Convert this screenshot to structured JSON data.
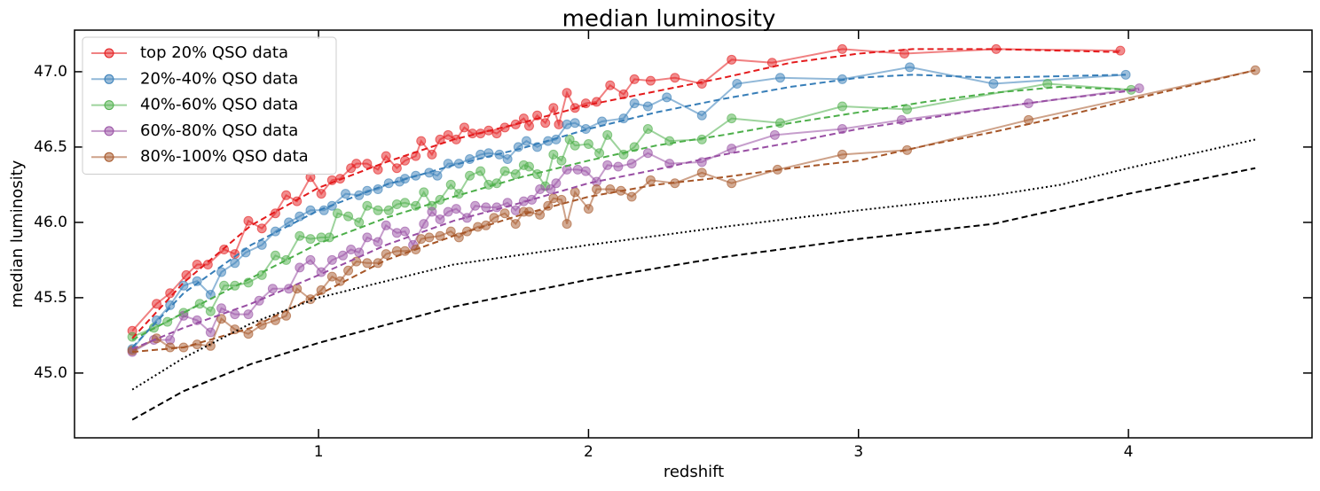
{
  "chart_data": {
    "type": "line",
    "title": "median luminosity",
    "xlabel": "redshift",
    "ylabel": "median luminosity",
    "xlim": [
      0.096,
      4.68
    ],
    "ylim": [
      44.57,
      47.276
    ],
    "xticks": [
      1,
      2,
      3,
      4
    ],
    "yticks": [
      {
        "value": 45,
        "label": "45.0"
      },
      45.5,
      {
        "value": 46,
        "label": "46.0"
      },
      46.5,
      {
        "value": 47,
        "label": "47.0"
      }
    ],
    "legend": "upper left",
    "series": [
      {
        "name": "top 20% QSO data",
        "color": "#e41a1c",
        "linestyle": "solid",
        "marker": true,
        "x": [
          0.31,
          0.4,
          0.45,
          0.51,
          0.55,
          0.59,
          0.65,
          0.69,
          0.74,
          0.79,
          0.84,
          0.88,
          0.92,
          0.97,
          1.01,
          1.05,
          1.08,
          1.12,
          1.14,
          1.18,
          1.22,
          1.25,
          1.29,
          1.32,
          1.36,
          1.38,
          1.42,
          1.45,
          1.48,
          1.51,
          1.54,
          1.57,
          1.6,
          1.63,
          1.66,
          1.69,
          1.73,
          1.76,
          1.78,
          1.81,
          1.84,
          1.87,
          1.89,
          1.92,
          1.95,
          1.99,
          2.03,
          2.08,
          2.13,
          2.17,
          2.23,
          2.32,
          2.42,
          2.53,
          2.68,
          2.94,
          3.17,
          3.51,
          3.97
        ],
        "values": [
          45.28,
          45.46,
          45.53,
          45.65,
          45.72,
          45.72,
          45.82,
          45.79,
          46.01,
          45.96,
          46.06,
          46.18,
          46.14,
          46.3,
          46.19,
          46.28,
          46.29,
          46.36,
          46.39,
          46.39,
          46.35,
          46.44,
          46.36,
          46.41,
          46.44,
          46.54,
          46.45,
          46.55,
          46.58,
          46.55,
          46.63,
          46.59,
          46.59,
          46.61,
          46.59,
          46.63,
          46.65,
          46.69,
          46.64,
          46.71,
          46.66,
          46.76,
          46.65,
          46.86,
          46.76,
          46.79,
          46.8,
          46.91,
          46.85,
          46.95,
          46.94,
          46.96,
          46.92,
          47.08,
          47.06,
          47.15,
          47.12,
          47.15,
          47.14
        ]
      },
      {
        "name": "20%-40% QSO data",
        "color": "#377eb8",
        "linestyle": "solid",
        "marker": true,
        "x": [
          0.31,
          0.4,
          0.45,
          0.5,
          0.55,
          0.6,
          0.64,
          0.69,
          0.73,
          0.79,
          0.84,
          0.89,
          0.93,
          0.97,
          1.02,
          1.05,
          1.1,
          1.15,
          1.18,
          1.22,
          1.26,
          1.3,
          1.32,
          1.36,
          1.41,
          1.44,
          1.48,
          1.52,
          1.56,
          1.6,
          1.63,
          1.67,
          1.7,
          1.74,
          1.77,
          1.81,
          1.85,
          1.88,
          1.92,
          1.95,
          1.99,
          2.05,
          2.13,
          2.17,
          2.22,
          2.29,
          2.42,
          2.55,
          2.71,
          2.94,
          3.19,
          3.5,
          3.99
        ],
        "values": [
          45.16,
          45.35,
          45.45,
          45.58,
          45.61,
          45.52,
          45.67,
          45.73,
          45.8,
          45.85,
          45.94,
          46.0,
          46.04,
          46.08,
          46.08,
          46.11,
          46.19,
          46.18,
          46.21,
          46.22,
          46.26,
          46.27,
          46.29,
          46.31,
          46.33,
          46.31,
          46.39,
          46.39,
          46.42,
          46.45,
          46.46,
          46.45,
          46.42,
          46.5,
          46.54,
          46.5,
          46.54,
          46.55,
          46.65,
          46.66,
          46.62,
          46.67,
          46.69,
          46.79,
          46.77,
          46.83,
          46.71,
          46.92,
          46.96,
          46.95,
          47.03,
          46.92,
          46.98
        ]
      },
      {
        "name": "40%-60% QSO data",
        "color": "#4daf4a",
        "linestyle": "solid",
        "marker": true,
        "x": [
          0.31,
          0.39,
          0.44,
          0.5,
          0.56,
          0.6,
          0.65,
          0.69,
          0.74,
          0.79,
          0.84,
          0.88,
          0.93,
          0.97,
          1.01,
          1.04,
          1.07,
          1.11,
          1.15,
          1.18,
          1.22,
          1.26,
          1.29,
          1.32,
          1.36,
          1.39,
          1.42,
          1.45,
          1.49,
          1.52,
          1.56,
          1.6,
          1.63,
          1.66,
          1.69,
          1.73,
          1.76,
          1.78,
          1.81,
          1.84,
          1.87,
          1.9,
          1.93,
          1.95,
          2.0,
          2.04,
          2.07,
          2.13,
          2.17,
          2.22,
          2.3,
          2.42,
          2.53,
          2.71,
          2.94,
          3.18,
          3.7,
          4.01
        ],
        "values": [
          45.24,
          45.3,
          45.34,
          45.4,
          45.46,
          45.41,
          45.58,
          45.58,
          45.6,
          45.65,
          45.78,
          45.75,
          45.91,
          45.89,
          45.9,
          45.9,
          46.06,
          46.04,
          46.0,
          46.11,
          46.08,
          46.08,
          46.12,
          46.13,
          46.11,
          46.2,
          46.11,
          46.15,
          46.25,
          46.19,
          46.31,
          46.34,
          46.25,
          46.26,
          46.34,
          46.32,
          46.38,
          46.37,
          46.32,
          46.24,
          46.45,
          46.41,
          46.55,
          46.51,
          46.52,
          46.46,
          46.58,
          46.45,
          46.5,
          46.62,
          46.54,
          46.55,
          46.69,
          46.66,
          46.77,
          46.75,
          46.92,
          46.88
        ]
      },
      {
        "name": "60%-80% QSO data",
        "color": "#984ea3",
        "linestyle": "solid",
        "marker": true,
        "x": [
          0.31,
          0.39,
          0.45,
          0.5,
          0.55,
          0.6,
          0.64,
          0.69,
          0.74,
          0.78,
          0.83,
          0.89,
          0.93,
          0.97,
          1.01,
          1.05,
          1.09,
          1.12,
          1.15,
          1.18,
          1.22,
          1.25,
          1.29,
          1.32,
          1.35,
          1.39,
          1.42,
          1.45,
          1.48,
          1.51,
          1.55,
          1.58,
          1.62,
          1.66,
          1.7,
          1.73,
          1.76,
          1.79,
          1.82,
          1.86,
          1.88,
          1.92,
          1.96,
          1.99,
          2.03,
          2.07,
          2.11,
          2.16,
          2.22,
          2.3,
          2.42,
          2.53,
          2.69,
          2.94,
          3.16,
          3.63,
          4.04
        ],
        "values": [
          45.14,
          45.22,
          45.22,
          45.38,
          45.35,
          45.27,
          45.43,
          45.39,
          45.39,
          45.48,
          45.56,
          45.56,
          45.7,
          45.75,
          45.67,
          45.75,
          45.78,
          45.82,
          45.8,
          45.9,
          45.87,
          45.98,
          45.93,
          45.94,
          45.85,
          45.99,
          46.07,
          46.02,
          46.07,
          46.09,
          46.03,
          46.11,
          46.1,
          46.1,
          46.13,
          46.08,
          46.14,
          46.15,
          46.22,
          46.22,
          46.26,
          46.35,
          46.35,
          46.34,
          46.27,
          46.38,
          46.37,
          46.39,
          46.46,
          46.39,
          46.4,
          46.49,
          46.58,
          46.62,
          46.68,
          46.79,
          46.89
        ]
      },
      {
        "name": "80%-100% QSO data",
        "color": "#a65628",
        "linestyle": "solid",
        "marker": true,
        "x": [
          0.31,
          0.4,
          0.45,
          0.5,
          0.55,
          0.6,
          0.64,
          0.69,
          0.74,
          0.79,
          0.84,
          0.88,
          0.92,
          0.97,
          1.01,
          1.05,
          1.08,
          1.11,
          1.14,
          1.18,
          1.22,
          1.25,
          1.29,
          1.32,
          1.36,
          1.38,
          1.41,
          1.45,
          1.49,
          1.52,
          1.55,
          1.59,
          1.62,
          1.65,
          1.69,
          1.73,
          1.76,
          1.78,
          1.82,
          1.85,
          1.87,
          1.9,
          1.92,
          1.95,
          2.0,
          2.03,
          2.08,
          2.12,
          2.16,
          2.23,
          2.32,
          2.42,
          2.53,
          2.7,
          2.94,
          3.18,
          3.63,
          4.47
        ],
        "values": [
          45.15,
          45.23,
          45.17,
          45.17,
          45.19,
          45.18,
          45.36,
          45.29,
          45.26,
          45.32,
          45.35,
          45.38,
          45.56,
          45.49,
          45.55,
          45.64,
          45.61,
          45.68,
          45.74,
          45.73,
          45.73,
          45.79,
          45.81,
          45.81,
          45.82,
          45.89,
          45.9,
          45.91,
          45.94,
          45.9,
          45.94,
          45.97,
          45.98,
          46.03,
          46.06,
          45.99,
          46.07,
          46.07,
          46.05,
          46.11,
          46.16,
          46.15,
          45.99,
          46.2,
          46.09,
          46.22,
          46.22,
          46.21,
          46.17,
          46.28,
          46.26,
          46.33,
          46.26,
          46.35,
          46.45,
          46.48,
          46.68,
          47.01
        ]
      },
      {
        "color": "#e41a1c",
        "linestyle": "dashed",
        "marker": false,
        "x": [
          0.31,
          0.5,
          0.75,
          1.0,
          1.25,
          1.5,
          1.75,
          2.0,
          2.25,
          2.5,
          2.75,
          3.0,
          3.2,
          3.5,
          3.75,
          3.97
        ],
        "values": [
          45.23,
          45.6,
          45.98,
          46.23,
          46.4,
          46.55,
          46.66,
          46.78,
          46.87,
          46.96,
          47.06,
          47.12,
          47.15,
          47.15,
          47.14,
          47.13
        ]
      },
      {
        "color": "#377eb8",
        "linestyle": "dashed",
        "marker": false,
        "x": [
          0.31,
          0.5,
          0.75,
          1.0,
          1.25,
          1.5,
          1.75,
          2.0,
          2.25,
          2.5,
          2.75,
          3.0,
          3.2,
          3.5,
          3.99
        ],
        "values": [
          45.17,
          45.53,
          45.85,
          46.08,
          46.25,
          46.38,
          46.49,
          46.62,
          46.73,
          46.82,
          46.9,
          46.96,
          46.98,
          46.96,
          46.98
        ]
      },
      {
        "color": "#4daf4a",
        "linestyle": "dashed",
        "marker": false,
        "x": [
          0.31,
          0.5,
          0.75,
          1.0,
          1.25,
          1.5,
          1.75,
          2.0,
          2.25,
          2.5,
          2.75,
          3.0,
          3.25,
          3.5,
          3.75,
          4.01
        ],
        "values": [
          45.22,
          45.4,
          45.63,
          45.86,
          46.03,
          46.17,
          46.3,
          46.41,
          46.51,
          46.58,
          46.66,
          46.73,
          46.8,
          46.86,
          46.9,
          46.88
        ]
      },
      {
        "color": "#984ea3",
        "linestyle": "dashed",
        "marker": false,
        "x": [
          0.31,
          0.5,
          0.75,
          1.0,
          1.25,
          1.5,
          1.75,
          2.0,
          2.25,
          2.5,
          2.75,
          3.0,
          3.25,
          3.5,
          3.75,
          4.04
        ],
        "values": [
          45.16,
          45.3,
          45.46,
          45.65,
          45.85,
          46.01,
          46.13,
          46.26,
          46.35,
          46.45,
          46.53,
          46.62,
          46.69,
          46.76,
          46.82,
          46.88
        ]
      },
      {
        "color": "#a65628",
        "linestyle": "dashed",
        "marker": false,
        "x": [
          0.31,
          0.5,
          0.75,
          1.0,
          1.25,
          1.5,
          1.75,
          2.0,
          2.25,
          2.5,
          2.75,
          3.0,
          3.25,
          3.5,
          3.75,
          4.0,
          4.47
        ],
        "values": [
          45.14,
          45.17,
          45.3,
          45.52,
          45.75,
          45.91,
          46.05,
          46.17,
          46.25,
          46.3,
          46.36,
          46.41,
          46.51,
          46.6,
          46.7,
          46.81,
          47.01
        ]
      },
      {
        "color": "#000000",
        "linestyle": "dotted",
        "marker": false,
        "x": [
          0.31,
          0.5,
          0.75,
          1.0,
          1.5,
          2.0,
          2.5,
          3.0,
          3.5,
          3.75,
          4.0,
          4.47
        ],
        "values": [
          44.89,
          45.1,
          45.33,
          45.5,
          45.72,
          45.85,
          45.97,
          46.08,
          46.18,
          46.25,
          46.36,
          46.55
        ]
      },
      {
        "color": "#000000",
        "linestyle": "dashed",
        "marker": false,
        "x": [
          0.31,
          0.5,
          0.75,
          1.0,
          1.5,
          2.0,
          2.5,
          3.0,
          3.5,
          3.65,
          4.0,
          4.47
        ],
        "values": [
          44.69,
          44.88,
          45.06,
          45.2,
          45.44,
          45.62,
          45.77,
          45.89,
          45.99,
          46.05,
          46.19,
          46.36
        ]
      }
    ]
  }
}
